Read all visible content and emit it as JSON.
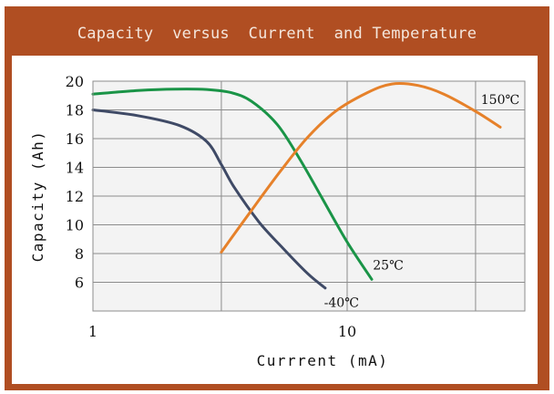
{
  "colors": {
    "frame": "#b04e22",
    "plot_area": "#f3f3f3",
    "grid": "#8c8c8c",
    "series_minus40": "#3f4a66",
    "series_25": "#1a9447",
    "series_150": "#e6812a"
  },
  "chart_data": {
    "type": "line",
    "title": "Capacity  versus  Current  and Temperature",
    "xlabel": "Currrent (mA)",
    "ylabel": "Capacity (Ah)",
    "x_scale": "log",
    "xlim": [
      1,
      50
    ],
    "ylim": [
      4,
      20
    ],
    "x_ticks": [
      {
        "value": 1,
        "label": "1"
      },
      {
        "value": 10,
        "label": "10"
      }
    ],
    "x_grid": [
      1,
      3.2,
      10,
      32
    ],
    "y_ticks": [
      {
        "value": 20,
        "label": "20"
      },
      {
        "value": 18,
        "label": "18"
      },
      {
        "value": 16,
        "label": "16"
      },
      {
        "value": 14,
        "label": "14"
      },
      {
        "value": 12,
        "label": "12"
      },
      {
        "value": 10,
        "label": "10"
      },
      {
        "value": 8,
        "label": "8"
      },
      {
        "value": 6,
        "label": "6"
      }
    ],
    "grid": true,
    "series": [
      {
        "name": "-40℃",
        "color": "#3f4a66",
        "points": [
          [
            1,
            18
          ],
          [
            1.5,
            17.6
          ],
          [
            2.2,
            16.9
          ],
          [
            2.8,
            15.8
          ],
          [
            3.2,
            14.2
          ],
          [
            3.6,
            12.6
          ],
          [
            4.5,
            10.2
          ],
          [
            5.5,
            8.5
          ],
          [
            7,
            6.6
          ],
          [
            8.2,
            5.6
          ]
        ]
      },
      {
        "name": "25℃",
        "color": "#1a9447",
        "points": [
          [
            1,
            19.1
          ],
          [
            1.5,
            19.35
          ],
          [
            2.1,
            19.45
          ],
          [
            2.8,
            19.42
          ],
          [
            3.5,
            19.2
          ],
          [
            4.2,
            18.6
          ],
          [
            5.3,
            17.0
          ],
          [
            6.5,
            14.6
          ],
          [
            8,
            11.8
          ],
          [
            10,
            8.8
          ],
          [
            12.5,
            6.2
          ]
        ]
      },
      {
        "name": "150℃",
        "color": "#e6812a",
        "points": [
          [
            3.2,
            8.1
          ],
          [
            4.2,
            11.0
          ],
          [
            5.5,
            13.8
          ],
          [
            7,
            16.1
          ],
          [
            9,
            17.9
          ],
          [
            12,
            19.2
          ],
          [
            15,
            19.8
          ],
          [
            19,
            19.7
          ],
          [
            24,
            19.1
          ],
          [
            32,
            17.9
          ],
          [
            40,
            16.8
          ]
        ]
      }
    ],
    "annotations": [
      {
        "text": "150℃",
        "x": 40,
        "y": 18.4
      },
      {
        "text": "25℃",
        "x": 14.5,
        "y": 6.9
      },
      {
        "text": "-40℃",
        "x": 9.5,
        "y": 4.3
      }
    ]
  }
}
